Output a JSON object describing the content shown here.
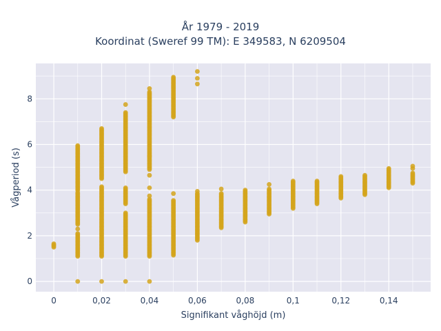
{
  "chart_data": {
    "type": "scatter",
    "title_lines": [
      "År 1979 - 2019",
      "Koordinat (Sweref 99 TM): E 349583, N 6209504"
    ],
    "xlabel": "Signifikant våghöjd (m)",
    "ylabel": "Vågperiod (s)",
    "xlim": [
      -0.0075,
      0.1575
    ],
    "ylim": [
      -0.45,
      9.55
    ],
    "x_ticks": [
      0,
      0.02,
      0.04,
      0.06,
      0.08,
      0.1,
      0.12,
      0.14
    ],
    "x_tick_labels": [
      "0",
      "0,02",
      "0,04",
      "0,06",
      "0,08",
      "0,1",
      "0,12",
      "0,14"
    ],
    "y_ticks": [
      0,
      2,
      4,
      6,
      8
    ],
    "y_tick_labels": [
      "0",
      "2",
      "4",
      "6",
      "8"
    ],
    "grid": true,
    "background": "#e5e5f0",
    "marker_color": "#d4a41c",
    "point_ranges": [
      {
        "x": 0.0,
        "ranges": [
          [
            1.5,
            1.65
          ]
        ],
        "singles": []
      },
      {
        "x": 0.01,
        "ranges": [
          [
            1.1,
            2.1
          ],
          [
            2.5,
            3.9
          ],
          [
            4.0,
            5.95
          ]
        ],
        "singles": [
          0.0,
          2.3
        ]
      },
      {
        "x": 0.02,
        "ranges": [
          [
            1.1,
            4.15
          ],
          [
            4.5,
            6.7
          ]
        ],
        "singles": [
          0.0
        ]
      },
      {
        "x": 0.03,
        "ranges": [
          [
            1.1,
            3.0
          ],
          [
            3.4,
            4.1
          ],
          [
            4.8,
            7.4
          ]
        ],
        "singles": [
          0.0,
          7.75
        ]
      },
      {
        "x": 0.04,
        "ranges": [
          [
            1.1,
            3.6
          ],
          [
            4.9,
            8.3
          ]
        ],
        "singles": [
          0.0,
          3.75,
          4.1,
          4.65,
          5.5,
          8.45
        ]
      },
      {
        "x": 0.05,
        "ranges": [
          [
            1.15,
            3.55
          ],
          [
            7.2,
            8.95
          ]
        ],
        "singles": [
          3.85
        ]
      },
      {
        "x": 0.06,
        "ranges": [
          [
            1.8,
            3.85
          ]
        ],
        "singles": [
          3.95,
          8.65,
          8.9,
          9.2
        ]
      },
      {
        "x": 0.07,
        "ranges": [
          [
            2.35,
            3.85
          ]
        ],
        "singles": [
          4.05
        ]
      },
      {
        "x": 0.08,
        "ranges": [
          [
            2.6,
            4.0
          ]
        ],
        "singles": []
      },
      {
        "x": 0.09,
        "ranges": [
          [
            2.95,
            4.05
          ]
        ],
        "singles": [
          4.25
        ]
      },
      {
        "x": 0.1,
        "ranges": [
          [
            3.2,
            4.4
          ]
        ],
        "singles": []
      },
      {
        "x": 0.11,
        "ranges": [
          [
            3.4,
            4.4
          ]
        ],
        "singles": []
      },
      {
        "x": 0.12,
        "ranges": [
          [
            3.65,
            4.6
          ]
        ],
        "singles": []
      },
      {
        "x": 0.13,
        "ranges": [
          [
            3.8,
            4.65
          ]
        ],
        "singles": []
      },
      {
        "x": 0.14,
        "ranges": [
          [
            4.1,
            4.95
          ]
        ],
        "singles": []
      },
      {
        "x": 0.15,
        "ranges": [
          [
            4.3,
            4.75
          ]
        ],
        "singles": [
          4.95,
          5.05
        ]
      }
    ]
  }
}
